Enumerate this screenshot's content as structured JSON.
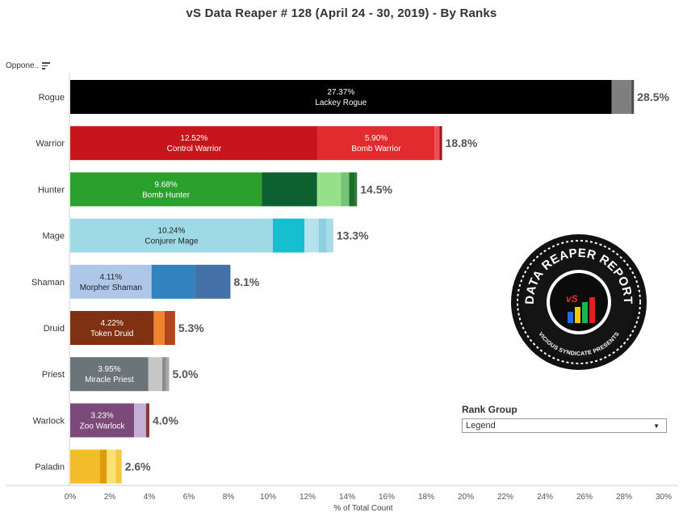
{
  "title": "vS Data Reaper #  128 (April 24 - 30, 2019) - By Ranks",
  "opponent_label": "Oppone..",
  "rank_group": {
    "label": "Rank Group",
    "selected": "Legend"
  },
  "logo": {
    "top_text": "DATA REAPER REPORT",
    "bottom_text": "VICIOUS SYNDICATE PRESENTS",
    "mark": "vS"
  },
  "chart_data": {
    "type": "bar",
    "orientation": "horizontal",
    "stacked": true,
    "xlabel": "% of Total Count",
    "xlim": [
      0,
      30
    ],
    "xticks": [
      "0%",
      "2%",
      "4%",
      "6%",
      "8%",
      "10%",
      "12%",
      "14%",
      "16%",
      "18%",
      "20%",
      "22%",
      "24%",
      "26%",
      "28%",
      "30%"
    ],
    "categories": [
      "Rogue",
      "Warrior",
      "Hunter",
      "Mage",
      "Shaman",
      "Druid",
      "Priest",
      "Warlock",
      "Paladin"
    ],
    "totals": [
      "28.5%",
      "18.8%",
      "14.5%",
      "13.3%",
      "8.1%",
      "5.3%",
      "5.0%",
      "4.0%",
      "2.6%"
    ],
    "rows": [
      {
        "class": "Rogue",
        "segments": [
          {
            "value": 27.37,
            "color": "#000000",
            "pct": "27.37%",
            "name": "Lackey Rogue"
          },
          {
            "value": 1.0,
            "color": "#7f7f7f"
          },
          {
            "value": 0.13,
            "color": "#4d4d4d"
          }
        ]
      },
      {
        "class": "Warrior",
        "segments": [
          {
            "value": 12.52,
            "color": "#c8151c",
            "pct": "12.52%",
            "name": "Control Warrior"
          },
          {
            "value": 5.9,
            "color": "#e22b2e",
            "pct": "5.90%",
            "name": "Bomb Warrior"
          },
          {
            "value": 0.25,
            "color": "#ee4d55"
          },
          {
            "value": 0.13,
            "color": "#a0141a"
          }
        ]
      },
      {
        "class": "Hunter",
        "segments": [
          {
            "value": 9.68,
            "color": "#2ca02c",
            "pct": "9.68%",
            "name": "Bomb Hunter"
          },
          {
            "value": 2.8,
            "color": "#0d6130"
          },
          {
            "value": 1.2,
            "color": "#98df8a"
          },
          {
            "value": 0.42,
            "color": "#74c476"
          },
          {
            "value": 0.3,
            "color": "#1e6b2a"
          },
          {
            "value": 0.1,
            "color": "#2b7a3a"
          }
        ]
      },
      {
        "class": "Mage",
        "segments": [
          {
            "value": 10.24,
            "color": "#9edae5",
            "pct": "10.24%",
            "name": "Conjurer Mage"
          },
          {
            "value": 1.6,
            "color": "#17becf"
          },
          {
            "value": 0.72,
            "color": "#b5e2ec"
          },
          {
            "value": 0.38,
            "color": "#8ccfe0"
          },
          {
            "value": 0.36,
            "color": "#a6dcea"
          }
        ]
      },
      {
        "class": "Shaman",
        "segments": [
          {
            "value": 4.11,
            "color": "#aec7e8",
            "pct": "4.11%",
            "name": "Morpher Shaman"
          },
          {
            "value": 2.2,
            "color": "#3182bd"
          },
          {
            "value": 1.79,
            "color": "#4472a8"
          }
        ]
      },
      {
        "class": "Druid",
        "segments": [
          {
            "value": 4.22,
            "color": "#7f3111",
            "pct": "4.22%",
            "name": "Token Druid"
          },
          {
            "value": 0.55,
            "color": "#f0832e"
          },
          {
            "value": 0.53,
            "color": "#b5441a"
          }
        ]
      },
      {
        "class": "Priest",
        "segments": [
          {
            "value": 3.95,
            "color": "#6b7479",
            "pct": "3.95%",
            "name": "Miracle Priest"
          },
          {
            "value": 0.7,
            "color": "#c6c6c6"
          },
          {
            "value": 0.2,
            "color": "#8c8c8c"
          },
          {
            "value": 0.15,
            "color": "#a8a8a8"
          }
        ]
      },
      {
        "class": "Warlock",
        "segments": [
          {
            "value": 3.23,
            "color": "#7b4a7b",
            "pct": "3.23%",
            "name": "Zoo Warlock"
          },
          {
            "value": 0.6,
            "color": "#c5b0d5"
          },
          {
            "value": 0.17,
            "color": "#8a3a3a"
          }
        ]
      },
      {
        "class": "Paladin",
        "segments": [
          {
            "value": 1.5,
            "color": "#f2bd29"
          },
          {
            "value": 0.35,
            "color": "#e09b0c"
          },
          {
            "value": 0.45,
            "color": "#fbe07a"
          },
          {
            "value": 0.3,
            "color": "#f5c842"
          }
        ]
      }
    ]
  }
}
